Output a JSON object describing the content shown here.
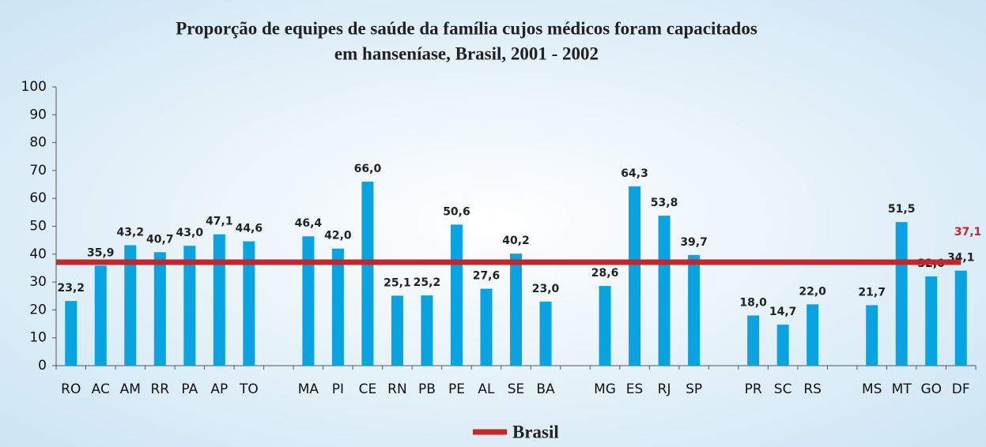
{
  "chart_data": {
    "type": "bar",
    "title": [
      "Proporção de equipes de saúde da família cujos médicos foram capacitados",
      "em hanseníase, Brasil, 2001 - 2002"
    ],
    "categories": [
      "RO",
      "AC",
      "AM",
      "RR",
      "PA",
      "AP",
      "TO",
      null,
      "MA",
      "PI",
      "CE",
      "RN",
      "PB",
      "PE",
      "AL",
      "SE",
      "BA",
      null,
      "MG",
      "ES",
      "RJ",
      "SP",
      null,
      "PR",
      "SC",
      "RS",
      null,
      "MS",
      "MT",
      "GO",
      "DF"
    ],
    "values": [
      23.2,
      35.9,
      43.2,
      40.7,
      43.0,
      47.1,
      44.6,
      null,
      46.4,
      42.0,
      66.0,
      25.1,
      25.2,
      50.6,
      27.6,
      40.2,
      23.0,
      null,
      28.6,
      64.3,
      53.8,
      39.7,
      null,
      18.0,
      14.7,
      22.0,
      null,
      21.7,
      51.5,
      32.0,
      34.1
    ],
    "value_labels": [
      "23,2",
      "35,9",
      "43,2",
      "40,7",
      "43,0",
      "47,1",
      "44,6",
      null,
      "46,4",
      "42,0",
      "66,0",
      "25,1",
      "25,2",
      "50,6",
      "27,6",
      "40,2",
      "23,0",
      null,
      "28,6",
      "64,3",
      "53,8",
      "39,7",
      null,
      "18,0",
      "14,7",
      "22,0",
      null,
      "21,7",
      "51,5",
      "32,0",
      "34,1"
    ],
    "color": "#0aa3e2",
    "reference": {
      "name": "Brasil",
      "value": 37.1,
      "value_label": "37,1",
      "color": "#c1272d"
    },
    "ylim": [
      0,
      100
    ],
    "yticks": [
      0,
      10,
      20,
      30,
      40,
      50,
      60,
      70,
      80,
      90,
      100
    ],
    "grid": false
  }
}
